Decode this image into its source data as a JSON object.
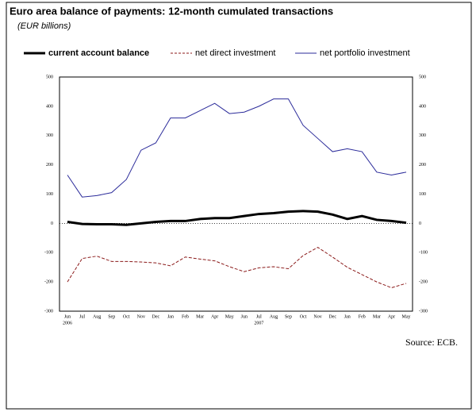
{
  "chart_data": {
    "type": "line",
    "title": "Euro area balance of payments: 12-month cumulated transactions",
    "subtitle": "(EUR billions)",
    "source": "Source: ECB.",
    "categories": [
      "Jun",
      "Jul",
      "Aug",
      "Sep",
      "Oct",
      "Nov",
      "Dec",
      "Jan",
      "Feb",
      "Mar",
      "Apr",
      "May",
      "Jun",
      "Jul",
      "Aug",
      "Sep",
      "Oct",
      "Nov",
      "Dec",
      "Jan",
      "Feb",
      "Mar",
      "Apr",
      "May"
    ],
    "category_years": [
      "2006",
      null,
      null,
      null,
      null,
      null,
      null,
      null,
      null,
      null,
      null,
      null,
      null,
      "2007",
      null,
      null,
      null,
      null,
      null,
      null,
      null,
      null,
      null,
      null
    ],
    "series": [
      {
        "name": "current account balance",
        "color": "#000000",
        "dash": "solid",
        "width": 3,
        "values": [
          5,
          -2,
          -3,
          -3,
          -5,
          0,
          5,
          8,
          8,
          15,
          18,
          18,
          25,
          32,
          35,
          40,
          42,
          40,
          30,
          15,
          25,
          12,
          8,
          2
        ]
      },
      {
        "name": "net direct investment",
        "color": "#8b1a1a",
        "dash": "dashed",
        "width": 1,
        "values": [
          -200,
          -120,
          -112,
          -130,
          -130,
          -132,
          -135,
          -145,
          -115,
          -122,
          -128,
          -148,
          -165,
          -152,
          -148,
          -155,
          -110,
          -82,
          -115,
          -150,
          -175,
          -200,
          -220,
          -205
        ]
      },
      {
        "name": "net portfolio investment",
        "color": "#2b2b9a",
        "dash": "solid",
        "width": 1,
        "values": [
          165,
          90,
          95,
          105,
          150,
          250,
          275,
          360,
          360,
          385,
          410,
          375,
          380,
          400,
          425,
          425,
          335,
          290,
          245,
          255,
          245,
          175,
          165,
          175
        ]
      }
    ],
    "ylim": [
      -300,
      500
    ],
    "yticks": [
      -300,
      -200,
      -100,
      0,
      100,
      200,
      300,
      400,
      500
    ],
    "zero_line": true
  }
}
